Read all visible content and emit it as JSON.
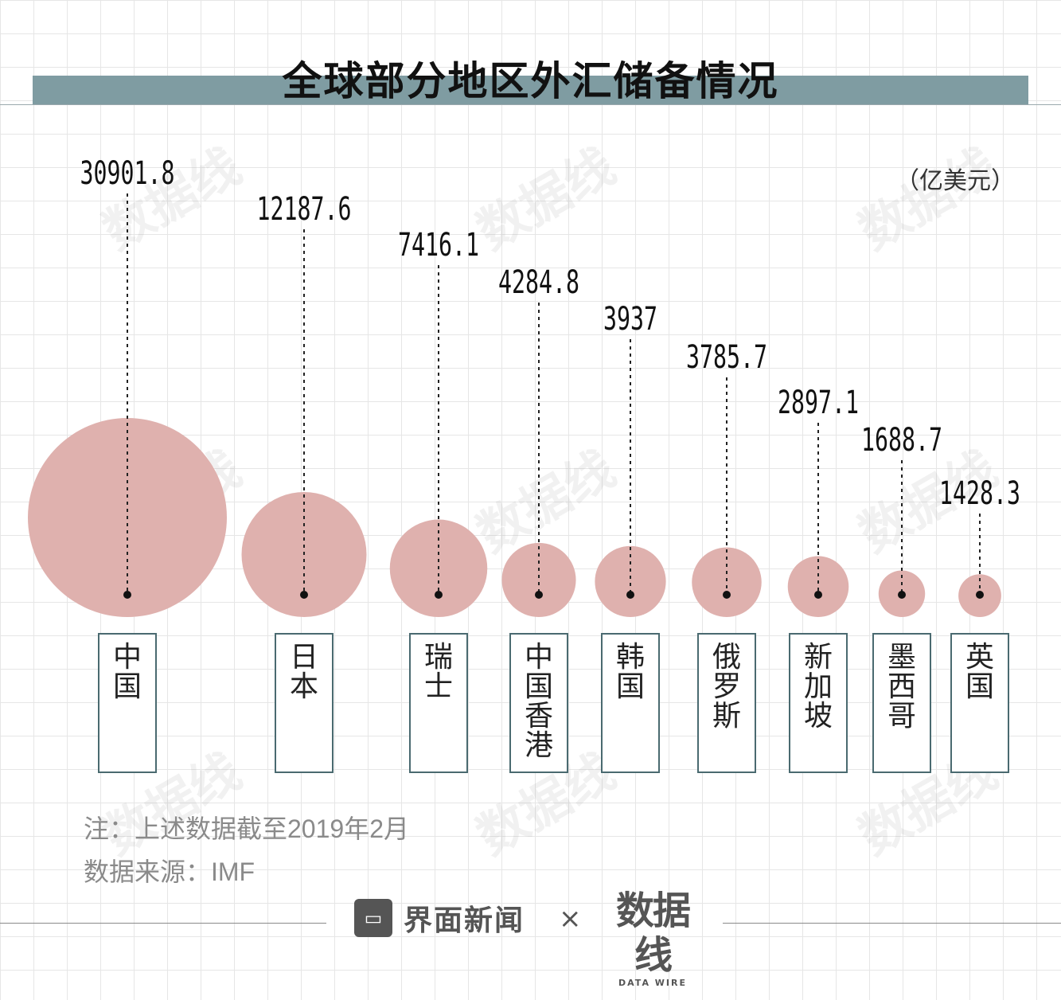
{
  "title": "全球部分地区外汇储备情况",
  "unit": "（亿美元）",
  "chart_data": {
    "type": "bubble",
    "title": "全球部分地区外汇储备情况",
    "unit": "亿美元",
    "categories": [
      "中国",
      "日本",
      "瑞士",
      "中国香港",
      "韩国",
      "俄罗斯",
      "新加坡",
      "墨西哥",
      "英国"
    ],
    "values": [
      30901.8,
      12187.6,
      7416.1,
      4284.8,
      3937,
      3785.7,
      2897.1,
      1688.7,
      1428.3
    ],
    "value_labels": [
      "30901.8",
      "12187.6",
      "7416.1",
      "4284.8",
      "3937",
      "3785.7",
      "2897.1",
      "1688.7",
      "1428.3"
    ]
  },
  "notes": {
    "note1": "注：上述数据截至2019年2月",
    "note2": "数据来源：IMF"
  },
  "footer": {
    "brand_icon": "jiemian-logo-icon",
    "brand_name": "界面新闻",
    "times": "×",
    "partner_name": "数据线",
    "partner_sub": "DATA WIRE"
  },
  "watermark": "数据线",
  "colors": {
    "bubble": "#dfb1ae",
    "title_bar": "#7f9ca2",
    "box_border": "#4a6a70"
  }
}
